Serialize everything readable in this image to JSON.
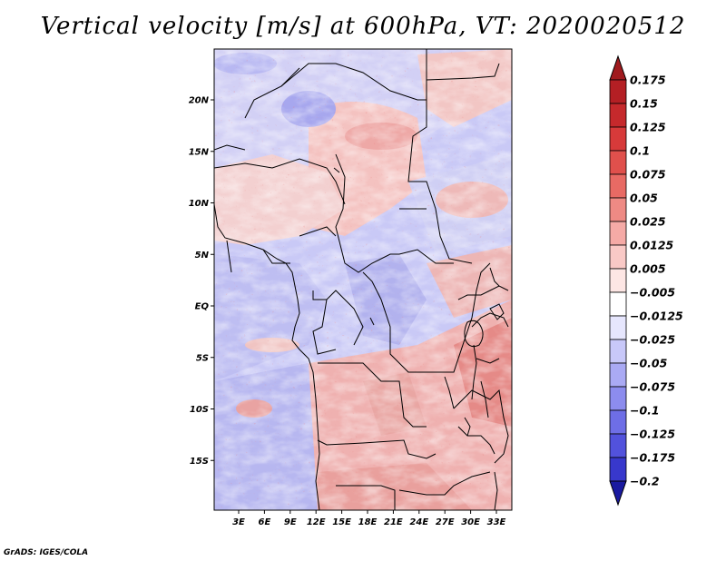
{
  "title": "Vertical velocity [m/s] at 600hPa, VT: 2020020512",
  "credit": "GrADS: IGES/COLA",
  "map": {
    "lat_ticks": [
      {
        "label": "20N",
        "lat": 20
      },
      {
        "label": "15N",
        "lat": 15
      },
      {
        "label": "10N",
        "lat": 10
      },
      {
        "label": "5N",
        "lat": 5
      },
      {
        "label": "EQ",
        "lat": 0
      },
      {
        "label": "5S",
        "lat": -5
      },
      {
        "label": "10S",
        "lat": -10
      },
      {
        "label": "15S",
        "lat": -15
      }
    ],
    "lon_ticks": [
      {
        "label": "3E",
        "lon": 3
      },
      {
        "label": "6E",
        "lon": 6
      },
      {
        "label": "9E",
        "lon": 9
      },
      {
        "label": "12E",
        "lon": 12
      },
      {
        "label": "15E",
        "lon": 15
      },
      {
        "label": "18E",
        "lon": 18
      },
      {
        "label": "21E",
        "lon": 21
      },
      {
        "label": "24E",
        "lon": 24
      },
      {
        "label": "27E",
        "lon": 27
      },
      {
        "label": "30E",
        "lon": 30
      },
      {
        "label": "33E",
        "lon": 33
      }
    ],
    "lat_range": [
      -20,
      25
    ],
    "lon_range": [
      0,
      34.5
    ]
  },
  "colorbar": {
    "levels": [
      {
        "label": "0.175",
        "color": "#b41f24"
      },
      {
        "label": "0.15",
        "color": "#c5292c"
      },
      {
        "label": "0.125",
        "color": "#d73a3a"
      },
      {
        "label": "0.1",
        "color": "#e0504c"
      },
      {
        "label": "0.075",
        "color": "#e86a64"
      },
      {
        "label": "0.05",
        "color": "#ee8a84"
      },
      {
        "label": "0.025",
        "color": "#f5aaa6"
      },
      {
        "label": "0.0125",
        "color": "#f9c9c6"
      },
      {
        "label": "0.005",
        "color": "#fde6e4"
      },
      {
        "label": "−0.005",
        "color": "#ffffff"
      },
      {
        "label": "−0.0125",
        "color": "#e6e6fd"
      },
      {
        "label": "−0.025",
        "color": "#c8c8f9"
      },
      {
        "label": "−0.05",
        "color": "#aaaaf4"
      },
      {
        "label": "−0.075",
        "color": "#8c8cee"
      },
      {
        "label": "−0.1",
        "color": "#6e6ee6"
      },
      {
        "label": "−0.125",
        "color": "#5252dc"
      },
      {
        "label": "−0.175",
        "color": "#3838cc"
      },
      {
        "label": "−0.2",
        "color": "#2222b4"
      }
    ],
    "top_color": "#a01a1e",
    "bottom_color": "#1a1aa0"
  }
}
